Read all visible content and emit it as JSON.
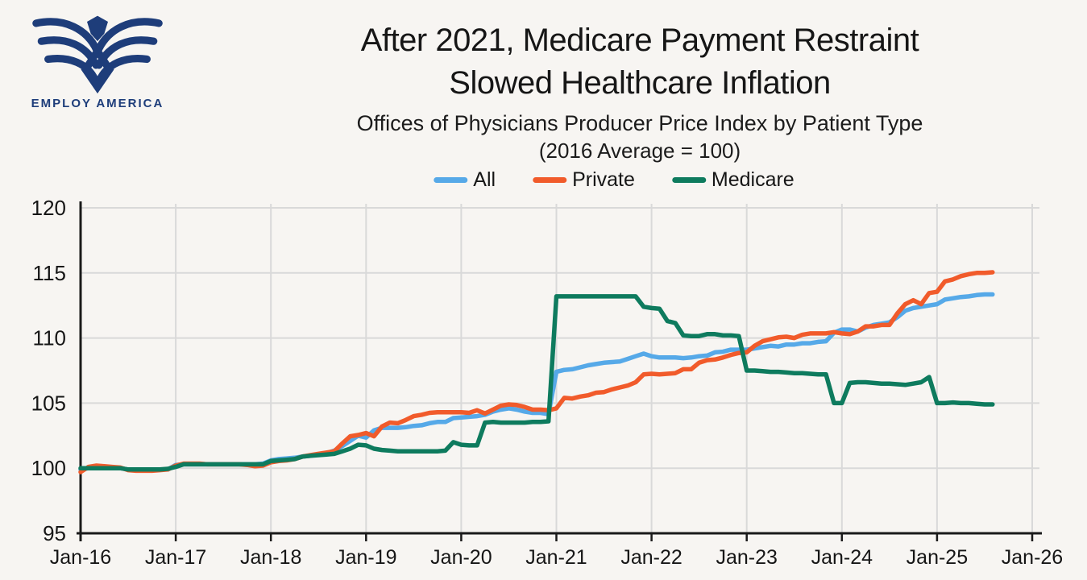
{
  "page": {
    "background": "#f7f5f2"
  },
  "logo": {
    "org_name": "EMPLOY AMERICA",
    "color": "#1e3d7a"
  },
  "title": {
    "line1": "After 2021, Medicare Payment Restraint",
    "line2": "Slowed Healthcare Inflation"
  },
  "subtitle": {
    "line1": "Offices of Physicians Producer Price Index by Patient Type",
    "line2": "(2016 Average = 100)"
  },
  "legend": {
    "items": [
      {
        "label": "All",
        "color": "#56a9e8"
      },
      {
        "label": "Private",
        "color": "#f15b2b"
      },
      {
        "label": "Medicare",
        "color": "#0e7b5e"
      }
    ]
  },
  "chart_data": {
    "type": "line",
    "title": "After 2021, Medicare Payment Restraint Slowed Healthcare Inflation",
    "subtitle": "Offices of Physicians Producer Price Index by Patient Type (2016 Average = 100)",
    "x_frequency": "monthly",
    "x_start": "2016-01",
    "x_end": "2025-08",
    "x_tick_labels": [
      "Jan-16",
      "Jan-17",
      "Jan-18",
      "Jan-19",
      "Jan-20",
      "Jan-21",
      "Jan-22",
      "Jan-23",
      "Jan-24",
      "Jan-25",
      "Jan-26"
    ],
    "y_ticks": [
      95,
      100,
      105,
      110,
      115,
      120
    ],
    "ylim": [
      95,
      120
    ],
    "grid": true,
    "legend_position": "top",
    "axis_color": "#1a1a1a",
    "grid_color": "#d9d9d9",
    "series": [
      {
        "name": "All",
        "color": "#56a9e8",
        "values": [
          99.9,
          100.0,
          100.0,
          100.0,
          100.0,
          100.0,
          99.9,
          99.9,
          99.85,
          99.85,
          99.9,
          99.9,
          100.25,
          100.3,
          100.3,
          100.3,
          100.3,
          100.3,
          100.3,
          100.3,
          100.3,
          100.3,
          100.3,
          100.35,
          100.6,
          100.7,
          100.75,
          100.8,
          100.9,
          100.95,
          101.05,
          101.15,
          101.35,
          101.7,
          102.1,
          102.5,
          102.35,
          102.9,
          103.1,
          103.1,
          103.1,
          103.15,
          103.25,
          103.3,
          103.45,
          103.55,
          103.55,
          103.85,
          103.9,
          103.95,
          104.0,
          104.1,
          104.35,
          104.5,
          104.6,
          104.5,
          104.35,
          104.25,
          104.25,
          104.15,
          107.4,
          107.55,
          107.6,
          107.75,
          107.9,
          108.0,
          108.1,
          108.15,
          108.2,
          108.4,
          108.6,
          108.8,
          108.6,
          108.5,
          108.5,
          108.5,
          108.45,
          108.5,
          108.6,
          108.65,
          108.9,
          108.95,
          109.1,
          109.1,
          109.1,
          109.2,
          109.3,
          109.4,
          109.35,
          109.5,
          109.5,
          109.6,
          109.6,
          109.7,
          109.75,
          110.4,
          110.65,
          110.65,
          110.5,
          110.8,
          111.0,
          111.1,
          111.2,
          111.6,
          112.1,
          112.3,
          112.4,
          112.5,
          112.6,
          112.95,
          113.05,
          113.15,
          113.2,
          113.3,
          113.35,
          113.35
        ]
      },
      {
        "name": "Private",
        "color": "#f15b2b",
        "values": [
          99.7,
          100.1,
          100.2,
          100.15,
          100.1,
          100.05,
          99.85,
          99.8,
          99.8,
          99.8,
          99.85,
          99.9,
          100.2,
          100.35,
          100.35,
          100.35,
          100.3,
          100.3,
          100.3,
          100.3,
          100.3,
          100.25,
          100.15,
          100.2,
          100.45,
          100.55,
          100.6,
          100.7,
          100.9,
          101.0,
          101.1,
          101.2,
          101.3,
          101.9,
          102.45,
          102.55,
          102.7,
          102.45,
          103.2,
          103.5,
          103.45,
          103.7,
          104.0,
          104.1,
          104.25,
          104.3,
          104.3,
          104.3,
          104.3,
          104.25,
          104.45,
          104.2,
          104.5,
          104.8,
          104.9,
          104.85,
          104.7,
          104.5,
          104.5,
          104.45,
          104.6,
          105.4,
          105.35,
          105.5,
          105.6,
          105.8,
          105.85,
          106.05,
          106.2,
          106.35,
          106.6,
          107.2,
          107.25,
          107.2,
          107.25,
          107.3,
          107.6,
          107.6,
          108.1,
          108.3,
          108.35,
          108.5,
          108.7,
          108.85,
          108.9,
          109.4,
          109.75,
          109.9,
          110.05,
          110.1,
          110.0,
          110.25,
          110.35,
          110.35,
          110.35,
          110.45,
          110.35,
          110.3,
          110.5,
          110.9,
          110.9,
          111.0,
          111.0,
          111.9,
          112.6,
          112.9,
          112.6,
          113.45,
          113.55,
          114.35,
          114.5,
          114.75,
          114.9,
          115.0,
          115.0,
          115.05
        ]
      },
      {
        "name": "Medicare",
        "color": "#0e7b5e",
        "values": [
          100.0,
          100.0,
          100.0,
          100.0,
          100.0,
          100.0,
          99.9,
          99.9,
          99.9,
          99.9,
          99.9,
          99.95,
          100.1,
          100.3,
          100.3,
          100.3,
          100.3,
          100.3,
          100.3,
          100.3,
          100.3,
          100.3,
          100.3,
          100.3,
          100.55,
          100.6,
          100.65,
          100.7,
          100.9,
          100.95,
          101.0,
          101.05,
          101.1,
          101.3,
          101.5,
          101.8,
          101.75,
          101.5,
          101.4,
          101.35,
          101.3,
          101.3,
          101.3,
          101.3,
          101.3,
          101.3,
          101.35,
          102.0,
          101.8,
          101.75,
          101.75,
          103.5,
          103.55,
          103.5,
          103.5,
          103.5,
          103.5,
          103.55,
          103.55,
          103.6,
          113.2,
          113.2,
          113.2,
          113.2,
          113.2,
          113.2,
          113.2,
          113.2,
          113.2,
          113.2,
          113.2,
          112.4,
          112.3,
          112.25,
          111.3,
          111.15,
          110.2,
          110.15,
          110.15,
          110.3,
          110.3,
          110.2,
          110.2,
          110.15,
          107.5,
          107.5,
          107.45,
          107.4,
          107.4,
          107.35,
          107.3,
          107.3,
          107.25,
          107.2,
          107.2,
          105.0,
          105.0,
          106.55,
          106.6,
          106.6,
          106.55,
          106.5,
          106.5,
          106.45,
          106.4,
          106.5,
          106.6,
          107.0,
          105.0,
          105.0,
          105.05,
          105.0,
          105.0,
          104.95,
          104.9,
          104.9
        ]
      }
    ]
  }
}
